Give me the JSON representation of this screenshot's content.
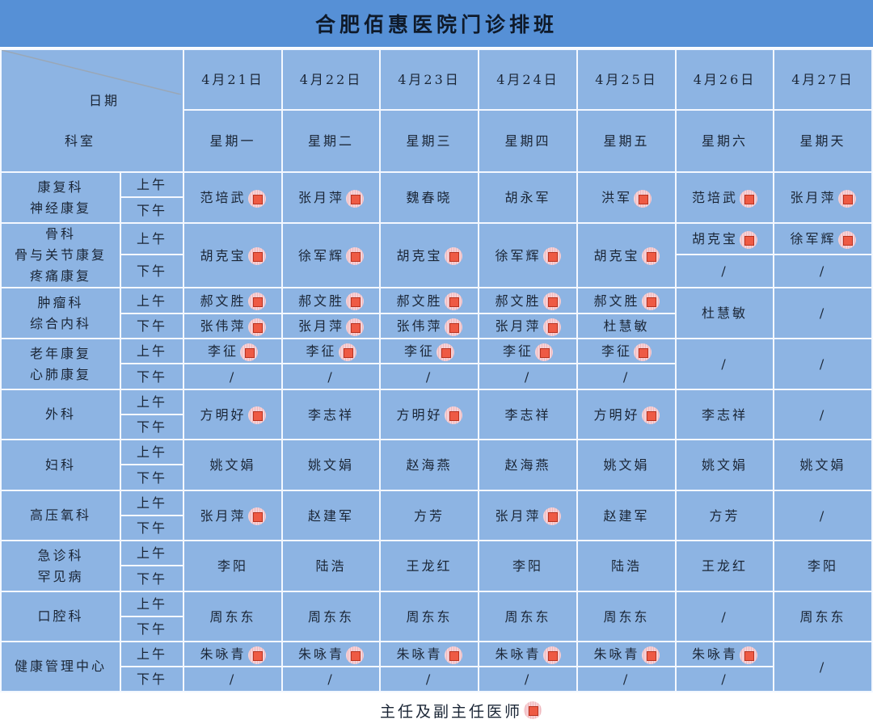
{
  "title": "合肥佰惠医院门诊排班",
  "header": {
    "date_label": "日期",
    "dept_label": "科室",
    "dates": [
      "4月21日",
      "4月22日",
      "4月23日",
      "4月24日",
      "4月25日",
      "4月26日",
      "4月27日"
    ],
    "weekdays": [
      "星期一",
      "星期二",
      "星期三",
      "星期四",
      "星期五",
      "星期六",
      "星期天"
    ]
  },
  "session_labels": {
    "am": "上午",
    "pm": "下午"
  },
  "colors": {
    "title_bg": "#5690d6",
    "cell_bg": "#8db4e3",
    "chief_mark": "#ee5a44"
  },
  "departments": [
    {
      "name": "康复科\n神经康复",
      "days": [
        {
          "full": {
            "name": "范培武",
            "chief": true
          }
        },
        {
          "full": {
            "name": "张月萍",
            "chief": true
          }
        },
        {
          "full": {
            "name": "魏春晓",
            "chief": false
          }
        },
        {
          "full": {
            "name": "胡永军",
            "chief": false
          }
        },
        {
          "full": {
            "name": "洪军",
            "chief": true
          }
        },
        {
          "full": {
            "name": "范培武",
            "chief": true
          }
        },
        {
          "full": {
            "name": "张月萍",
            "chief": true
          }
        }
      ]
    },
    {
      "name": "骨科\n骨与关节康复\n疼痛康复",
      "days": [
        {
          "full": {
            "name": "胡克宝",
            "chief": true
          }
        },
        {
          "full": {
            "name": "徐军辉",
            "chief": true
          }
        },
        {
          "full": {
            "name": "胡克宝",
            "chief": true
          }
        },
        {
          "full": {
            "name": "徐军辉",
            "chief": true
          }
        },
        {
          "full": {
            "name": "胡克宝",
            "chief": true
          }
        },
        {
          "am": {
            "name": "胡克宝",
            "chief": true
          },
          "pm": {
            "name": "/",
            "chief": false
          }
        },
        {
          "am": {
            "name": "徐军辉",
            "chief": true
          },
          "pm": {
            "name": "/",
            "chief": false
          }
        }
      ]
    },
    {
      "name": "肿瘤科\n综合内科",
      "days": [
        {
          "am": {
            "name": "郝文胜",
            "chief": true
          },
          "pm": {
            "name": "张伟萍",
            "chief": true
          }
        },
        {
          "am": {
            "name": "郝文胜",
            "chief": true
          },
          "pm": {
            "name": "张月萍",
            "chief": true
          }
        },
        {
          "am": {
            "name": "郝文胜",
            "chief": true
          },
          "pm": {
            "name": "张伟萍",
            "chief": true
          }
        },
        {
          "am": {
            "name": "郝文胜",
            "chief": true
          },
          "pm": {
            "name": "张月萍",
            "chief": true
          }
        },
        {
          "am": {
            "name": "郝文胜",
            "chief": true
          },
          "pm": {
            "name": "杜慧敏",
            "chief": false
          }
        },
        {
          "full": {
            "name": "杜慧敏",
            "chief": false
          }
        },
        {
          "full": {
            "name": "/",
            "chief": false
          }
        }
      ]
    },
    {
      "name": "老年康复\n心肺康复",
      "days": [
        {
          "am": {
            "name": "李征",
            "chief": true
          },
          "pm": {
            "name": "/",
            "chief": false
          }
        },
        {
          "am": {
            "name": "李征",
            "chief": true
          },
          "pm": {
            "name": "/",
            "chief": false
          }
        },
        {
          "am": {
            "name": "李征",
            "chief": true
          },
          "pm": {
            "name": "/",
            "chief": false
          }
        },
        {
          "am": {
            "name": "李征",
            "chief": true
          },
          "pm": {
            "name": "/",
            "chief": false
          }
        },
        {
          "am": {
            "name": "李征",
            "chief": true
          },
          "pm": {
            "name": "/",
            "chief": false
          }
        },
        {
          "full": {
            "name": "/",
            "chief": false
          }
        },
        {
          "full": {
            "name": "/",
            "chief": false
          }
        }
      ]
    },
    {
      "name": "外科",
      "days": [
        {
          "full": {
            "name": "方明好",
            "chief": true
          }
        },
        {
          "full": {
            "name": "李志祥",
            "chief": false
          }
        },
        {
          "full": {
            "name": "方明好",
            "chief": true
          }
        },
        {
          "full": {
            "name": "李志祥",
            "chief": false
          }
        },
        {
          "full": {
            "name": "方明好",
            "chief": true
          }
        },
        {
          "full": {
            "name": "李志祥",
            "chief": false
          }
        },
        {
          "full": {
            "name": "/",
            "chief": false
          }
        }
      ]
    },
    {
      "name": "妇科",
      "days": [
        {
          "full": {
            "name": "姚文娟",
            "chief": false
          }
        },
        {
          "full": {
            "name": "姚文娟",
            "chief": false
          }
        },
        {
          "full": {
            "name": "赵海燕",
            "chief": false
          }
        },
        {
          "full": {
            "name": "赵海燕",
            "chief": false
          }
        },
        {
          "full": {
            "name": "姚文娟",
            "chief": false
          }
        },
        {
          "full": {
            "name": "姚文娟",
            "chief": false
          }
        },
        {
          "full": {
            "name": "姚文娟",
            "chief": false
          }
        }
      ]
    },
    {
      "name": "高压氧科",
      "days": [
        {
          "full": {
            "name": "张月萍",
            "chief": true
          }
        },
        {
          "full": {
            "name": "赵建军",
            "chief": false
          }
        },
        {
          "full": {
            "name": "方芳",
            "chief": false
          }
        },
        {
          "full": {
            "name": "张月萍",
            "chief": true
          }
        },
        {
          "full": {
            "name": "赵建军",
            "chief": false
          }
        },
        {
          "full": {
            "name": "方芳",
            "chief": false
          }
        },
        {
          "full": {
            "name": "/",
            "chief": false
          }
        }
      ]
    },
    {
      "name": "急诊科\n罕见病",
      "days": [
        {
          "full": {
            "name": "李阳",
            "chief": false
          }
        },
        {
          "full": {
            "name": "陆浩",
            "chief": false
          }
        },
        {
          "full": {
            "name": "王龙红",
            "chief": false
          }
        },
        {
          "full": {
            "name": "李阳",
            "chief": false
          }
        },
        {
          "full": {
            "name": "陆浩",
            "chief": false
          }
        },
        {
          "full": {
            "name": "王龙红",
            "chief": false
          }
        },
        {
          "full": {
            "name": "李阳",
            "chief": false
          }
        }
      ]
    },
    {
      "name": "口腔科",
      "days": [
        {
          "full": {
            "name": "周东东",
            "chief": false
          }
        },
        {
          "full": {
            "name": "周东东",
            "chief": false
          }
        },
        {
          "full": {
            "name": "周东东",
            "chief": false
          }
        },
        {
          "full": {
            "name": "周东东",
            "chief": false
          }
        },
        {
          "full": {
            "name": "周东东",
            "chief": false
          }
        },
        {
          "full": {
            "name": "/",
            "chief": false
          }
        },
        {
          "full": {
            "name": "周东东",
            "chief": false
          }
        }
      ]
    },
    {
      "name": "健康管理中心",
      "days": [
        {
          "am": {
            "name": "朱咏青",
            "chief": true
          },
          "pm": {
            "name": "/",
            "chief": false
          }
        },
        {
          "am": {
            "name": "朱咏青",
            "chief": true
          },
          "pm": {
            "name": "/",
            "chief": false
          }
        },
        {
          "am": {
            "name": "朱咏青",
            "chief": true
          },
          "pm": {
            "name": "/",
            "chief": false
          }
        },
        {
          "am": {
            "name": "朱咏青",
            "chief": true
          },
          "pm": {
            "name": "/",
            "chief": false
          }
        },
        {
          "am": {
            "name": "朱咏青",
            "chief": true
          },
          "pm": {
            "name": "/",
            "chief": false
          }
        },
        {
          "am": {
            "name": "朱咏青",
            "chief": true
          },
          "pm": {
            "name": "/",
            "chief": false
          }
        },
        {
          "full": {
            "name": "/",
            "chief": false
          }
        }
      ]
    }
  ],
  "footer": {
    "legend_label": "主任及副主任医师"
  }
}
